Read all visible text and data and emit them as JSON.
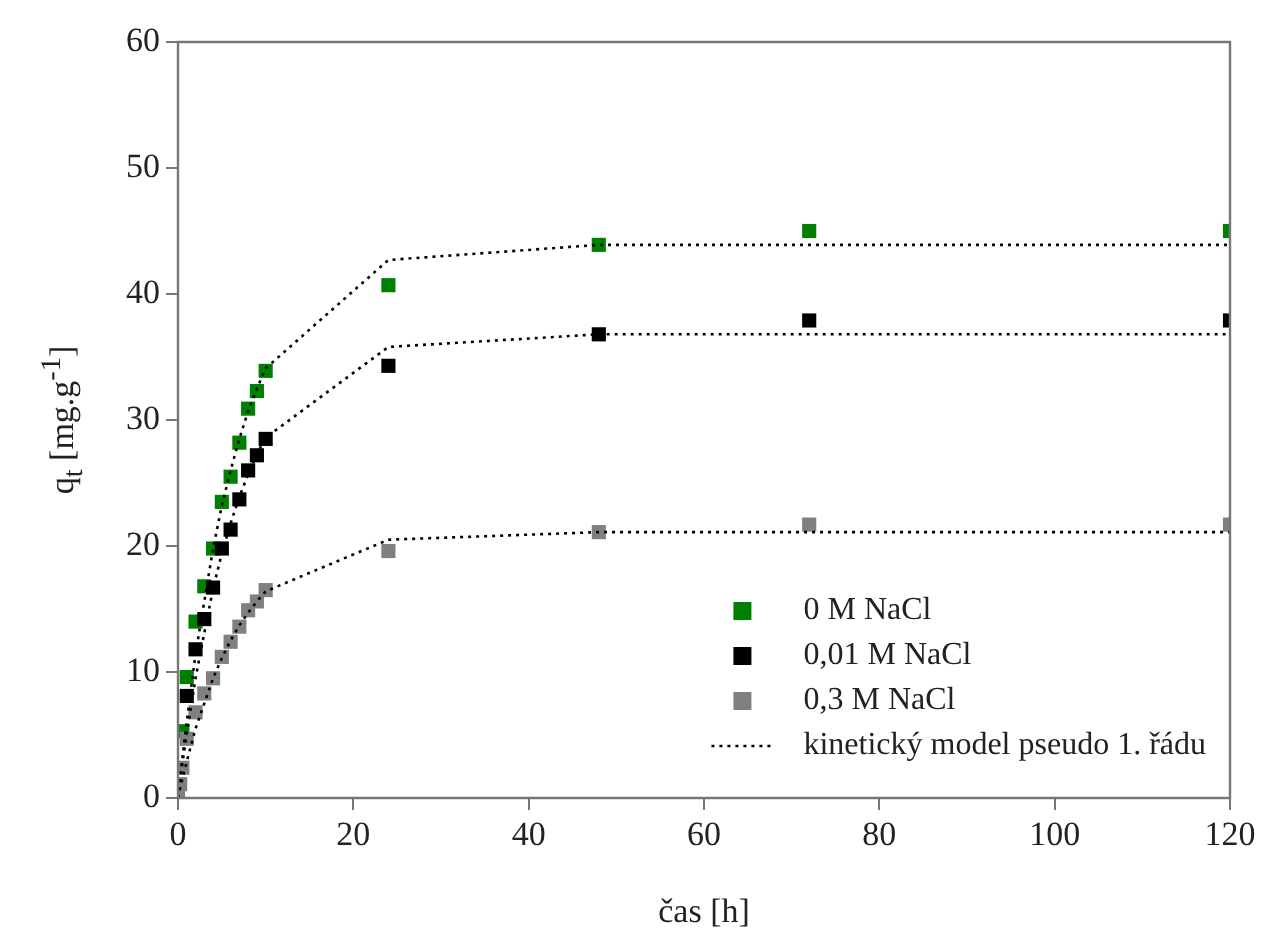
{
  "chart_data": {
    "type": "scatter",
    "xlabel": "čas [h]",
    "ylabel": "q$_{t}$ [mg.g$^{-1}$]",
    "xlim": [
      0,
      120
    ],
    "xticks": [
      0,
      20,
      40,
      60,
      80,
      100,
      120
    ],
    "ylim": [
      0,
      60
    ],
    "yticks": [
      0,
      10,
      20,
      30,
      40,
      50,
      60
    ],
    "legend": "bottom right",
    "marker": "square",
    "x": [
      0,
      0.25,
      0.5,
      1,
      2,
      3,
      4,
      5,
      6,
      7,
      8,
      9,
      10,
      24,
      48,
      72,
      120
    ],
    "series": [
      {
        "name": "0 M NaCl",
        "color": "#008000",
        "values": [
          null,
          null,
          5.3,
          9.6,
          14.0,
          16.8,
          19.8,
          23.5,
          25.5,
          28.2,
          30.9,
          32.3,
          33.9,
          40.7,
          43.9,
          45.0,
          45.0
        ]
      },
      {
        "name": "0,01 M NaCl",
        "color": "#000000",
        "values": [
          null,
          null,
          null,
          8.1,
          11.8,
          14.2,
          16.7,
          19.8,
          21.3,
          23.7,
          26.0,
          27.2,
          28.5,
          34.3,
          36.8,
          37.9,
          37.9
        ]
      },
      {
        "name": "0,3 M NaCl",
        "color": "#808080",
        "values": [
          0,
          1.1,
          2.4,
          4.7,
          6.8,
          8.3,
          9.5,
          11.2,
          12.4,
          13.6,
          14.9,
          15.6,
          16.5,
          19.6,
          21.1,
          21.7,
          21.7
        ]
      },
      {
        "name": "kinetický model pseudo 1. řádu",
        "type": "line",
        "marker": "none",
        "line_style": "dotted",
        "color": "#000000",
        "values": [
          0,
          1.6,
          3.2,
          6.1,
          11.4,
          15.6,
          19.8,
          23.2,
          26.0,
          28.5,
          30.7,
          32.5,
          34.1,
          42.7,
          43.9,
          43.9,
          43.9
        ]
      },
      {
        "type": "line",
        "marker": "none",
        "line_style": "dotted",
        "color": "#000000",
        "values": [
          0,
          1.4,
          2.7,
          5.1,
          9.5,
          13.1,
          16.6,
          19.4,
          21.8,
          23.9,
          25.7,
          27.3,
          28.6,
          35.8,
          36.8,
          36.8,
          36.8
        ]
      },
      {
        "type": "line",
        "marker": "none",
        "line_style": "dotted",
        "color": "#000000",
        "values": [
          0,
          0.8,
          1.5,
          2.9,
          5.5,
          7.5,
          9.5,
          11.1,
          12.5,
          13.7,
          14.7,
          15.6,
          16.4,
          20.5,
          21.1,
          21.1,
          21.1
        ]
      }
    ]
  }
}
